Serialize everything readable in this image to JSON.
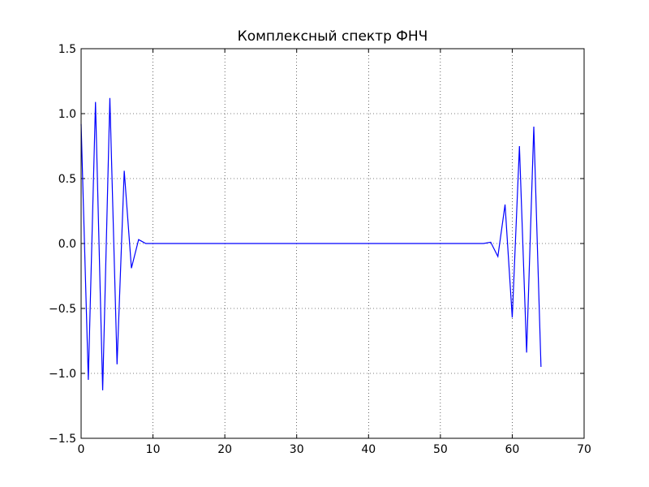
{
  "chart_data": {
    "type": "line",
    "title": "Комплексный спектр ФНЧ",
    "xlabel": "",
    "ylabel": "",
    "xlim": [
      0,
      70
    ],
    "ylim": [
      -1.5,
      1.5
    ],
    "xticks": [
      0,
      10,
      20,
      30,
      40,
      50,
      60,
      70
    ],
    "yticks": [
      -1.5,
      -1.0,
      -0.5,
      0.0,
      0.5,
      1.0,
      1.5
    ],
    "xtick_labels": [
      "0",
      "10",
      "20",
      "30",
      "40",
      "50",
      "60",
      "70"
    ],
    "ytick_labels": [
      "−1.5",
      "−1.0",
      "−0.5",
      "0.0",
      "0.5",
      "1.0",
      "1.5"
    ],
    "grid": true,
    "grid_style": "dotted",
    "series": [
      {
        "color": "#0000ff",
        "x": [
          0,
          1,
          2,
          3,
          4,
          5,
          6,
          7,
          8,
          9,
          10,
          15,
          20,
          25,
          30,
          35,
          40,
          45,
          50,
          55,
          56,
          57,
          58,
          59,
          60,
          61,
          62,
          63,
          64
        ],
        "y": [
          0.92,
          -1.05,
          1.09,
          -1.13,
          1.12,
          -0.93,
          0.56,
          -0.19,
          0.03,
          0.0,
          0.0,
          0.0,
          0.0,
          0.0,
          0.0,
          0.0,
          0.0,
          0.0,
          0.0,
          0.0,
          0.0,
          0.01,
          -0.1,
          0.3,
          -0.57,
          0.75,
          -0.84,
          0.9,
          -0.95
        ]
      }
    ]
  }
}
